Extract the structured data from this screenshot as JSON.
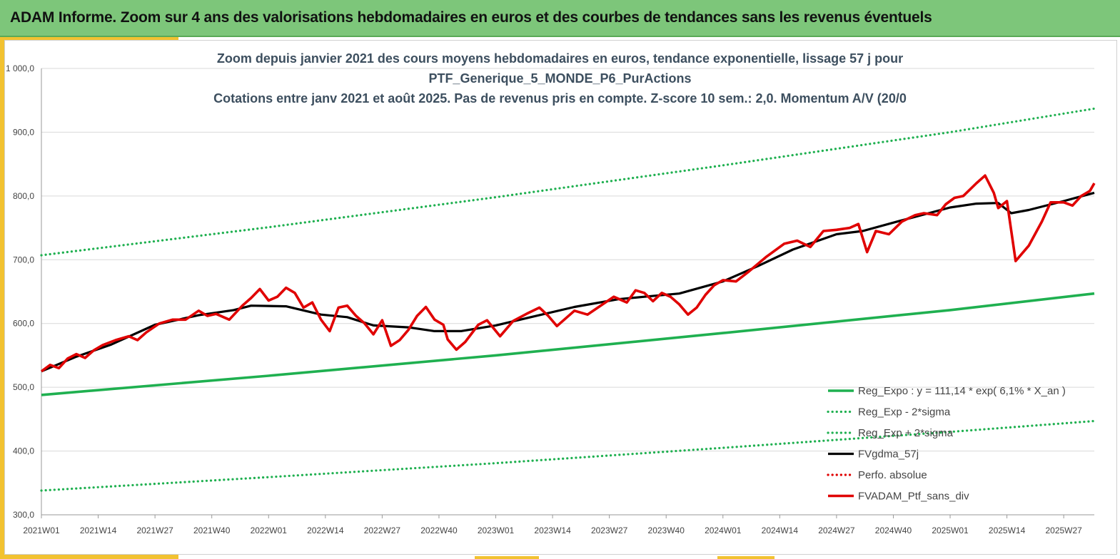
{
  "header": {
    "title": "ADAM Informe. Zoom sur 4 ans des valorisations hebdomadaires en euros et des courbes de tendances sans les revenus éventuels"
  },
  "colors": {
    "banner": "#7dc67a",
    "accent": "#f2c230",
    "trend_green": "#1fb050",
    "black": "#000000",
    "red": "#e00000",
    "grid": "#d9d9d9"
  },
  "chart_data": {
    "type": "line",
    "title_lines": [
      "Zoom depuis janvier 2021 des cours moyens hebdomadaires  en euros, tendance exponentielle, lissage 57 j pour",
      "PTF_Generique_5_MONDE_P6_PurActions",
      "Cotations entre janv 2021 et août 2025. Pas de revenus pris en compte. Z-score 10 sem.: 2,0. Momentum A/V (20/0"
    ],
    "xlabel": "",
    "ylabel": "",
    "ylim": [
      300,
      1000
    ],
    "y_ticks": [
      "300,0",
      "400,0",
      "500,0",
      "600,0",
      "700,0",
      "800,0",
      "900,0",
      "1 000,0"
    ],
    "x_range_weeks": [
      0,
      241
    ],
    "x_ticks": [
      {
        "label": "2021W01",
        "week": 0
      },
      {
        "label": "2021W14",
        "week": 13
      },
      {
        "label": "2021W27",
        "week": 26
      },
      {
        "label": "2021W40",
        "week": 39
      },
      {
        "label": "2022W01",
        "week": 52
      },
      {
        "label": "2022W14",
        "week": 65
      },
      {
        "label": "2022W27",
        "week": 78
      },
      {
        "label": "2022W40",
        "week": 91
      },
      {
        "label": "2023W01",
        "week": 104
      },
      {
        "label": "2023W14",
        "week": 117
      },
      {
        "label": "2023W27",
        "week": 130
      },
      {
        "label": "2023W40",
        "week": 143
      },
      {
        "label": "2024W01",
        "week": 156
      },
      {
        "label": "2024W14",
        "week": 169
      },
      {
        "label": "2024W27",
        "week": 182
      },
      {
        "label": "2024W40",
        "week": 195
      },
      {
        "label": "2025W01",
        "week": 208
      },
      {
        "label": "2025W14",
        "week": 221
      },
      {
        "label": "2025W27",
        "week": 234
      }
    ],
    "grid": "horizontal",
    "legend_position": "bottom-right",
    "series": [
      {
        "name": "Reg_Expo : y = 111,14 * exp( 6,1% *  X_an )",
        "style": "solid-thick",
        "color": "#1fb050",
        "points": [
          [
            0,
            488
          ],
          [
            52,
            518
          ],
          [
            104,
            550
          ],
          [
            156,
            585
          ],
          [
            208,
            621
          ],
          [
            241,
            647
          ]
        ]
      },
      {
        "name": "Reg_Exp - 2*sigma",
        "style": "dotted",
        "color": "#1fb050",
        "points": [
          [
            0,
            338
          ],
          [
            52,
            359
          ],
          [
            104,
            381
          ],
          [
            156,
            405
          ],
          [
            208,
            430
          ],
          [
            241,
            447
          ]
        ]
      },
      {
        "name": "Reg_Exp + 2*sigma",
        "style": "dotted",
        "color": "#1fb050",
        "points": [
          [
            0,
            707
          ],
          [
            52,
            751
          ],
          [
            104,
            798
          ],
          [
            156,
            848
          ],
          [
            208,
            900
          ],
          [
            241,
            937
          ]
        ]
      },
      {
        "name": "FVgdma_57j",
        "style": "solid",
        "color": "#000000",
        "points": [
          [
            0,
            525
          ],
          [
            8,
            548
          ],
          [
            16,
            567
          ],
          [
            26,
            598
          ],
          [
            36,
            613
          ],
          [
            44,
            621
          ],
          [
            48,
            628
          ],
          [
            56,
            627
          ],
          [
            64,
            614
          ],
          [
            70,
            610
          ],
          [
            76,
            597
          ],
          [
            84,
            594
          ],
          [
            90,
            588
          ],
          [
            96,
            588
          ],
          [
            104,
            597
          ],
          [
            112,
            610
          ],
          [
            122,
            626
          ],
          [
            132,
            638
          ],
          [
            138,
            642
          ],
          [
            146,
            647
          ],
          [
            156,
            666
          ],
          [
            164,
            690
          ],
          [
            172,
            716
          ],
          [
            182,
            740
          ],
          [
            188,
            745
          ],
          [
            196,
            760
          ],
          [
            208,
            782
          ],
          [
            214,
            788
          ],
          [
            219,
            789
          ],
          [
            222,
            773
          ],
          [
            226,
            778
          ],
          [
            234,
            792
          ],
          [
            241,
            805
          ]
        ]
      },
      {
        "name": "Perfo. absolue",
        "style": "dotted",
        "color": "#e00000",
        "points": []
      },
      {
        "name": "FVADAM_Ptf_sans_div",
        "style": "solid-thick",
        "color": "#e00000",
        "points": [
          [
            0,
            525
          ],
          [
            2,
            535
          ],
          [
            4,
            530
          ],
          [
            6,
            545
          ],
          [
            8,
            552
          ],
          [
            10,
            546
          ],
          [
            12,
            558
          ],
          [
            14,
            566
          ],
          [
            17,
            574
          ],
          [
            20,
            580
          ],
          [
            22,
            574
          ],
          [
            24,
            586
          ],
          [
            27,
            600
          ],
          [
            30,
            606
          ],
          [
            33,
            606
          ],
          [
            36,
            620
          ],
          [
            38,
            612
          ],
          [
            40,
            615
          ],
          [
            43,
            606
          ],
          [
            46,
            628
          ],
          [
            48,
            640
          ],
          [
            50,
            654
          ],
          [
            52,
            636
          ],
          [
            54,
            642
          ],
          [
            56,
            656
          ],
          [
            58,
            648
          ],
          [
            60,
            625
          ],
          [
            62,
            633
          ],
          [
            64,
            606
          ],
          [
            66,
            588
          ],
          [
            68,
            625
          ],
          [
            70,
            628
          ],
          [
            72,
            612
          ],
          [
            74,
            600
          ],
          [
            76,
            583
          ],
          [
            78,
            605
          ],
          [
            80,
            565
          ],
          [
            82,
            574
          ],
          [
            84,
            590
          ],
          [
            86,
            612
          ],
          [
            88,
            626
          ],
          [
            90,
            606
          ],
          [
            92,
            598
          ],
          [
            93,
            575
          ],
          [
            95,
            559
          ],
          [
            97,
            571
          ],
          [
            100,
            598
          ],
          [
            102,
            605
          ],
          [
            105,
            580
          ],
          [
            108,
            604
          ],
          [
            111,
            615
          ],
          [
            114,
            625
          ],
          [
            116,
            612
          ],
          [
            118,
            596
          ],
          [
            122,
            620
          ],
          [
            125,
            614
          ],
          [
            128,
            628
          ],
          [
            131,
            642
          ],
          [
            134,
            633
          ],
          [
            136,
            652
          ],
          [
            138,
            648
          ],
          [
            140,
            635
          ],
          [
            142,
            648
          ],
          [
            144,
            642
          ],
          [
            146,
            630
          ],
          [
            148,
            614
          ],
          [
            150,
            625
          ],
          [
            152,
            645
          ],
          [
            154,
            660
          ],
          [
            156,
            668
          ],
          [
            159,
            666
          ],
          [
            162,
            682
          ],
          [
            166,
            705
          ],
          [
            170,
            725
          ],
          [
            173,
            730
          ],
          [
            176,
            720
          ],
          [
            179,
            745
          ],
          [
            182,
            747
          ],
          [
            185,
            750
          ],
          [
            187,
            756
          ],
          [
            189,
            712
          ],
          [
            191,
            745
          ],
          [
            194,
            740
          ],
          [
            197,
            760
          ],
          [
            200,
            770
          ],
          [
            202,
            773
          ],
          [
            205,
            770
          ],
          [
            207,
            787
          ],
          [
            209,
            797
          ],
          [
            211,
            800
          ],
          [
            214,
            820
          ],
          [
            216,
            832
          ],
          [
            218,
            805
          ],
          [
            219,
            781
          ],
          [
            221,
            792
          ],
          [
            223,
            698
          ],
          [
            226,
            722
          ],
          [
            229,
            760
          ],
          [
            231,
            790
          ],
          [
            234,
            790
          ],
          [
            236,
            785
          ],
          [
            238,
            800
          ],
          [
            240,
            808
          ],
          [
            241,
            820
          ]
        ]
      }
    ]
  }
}
